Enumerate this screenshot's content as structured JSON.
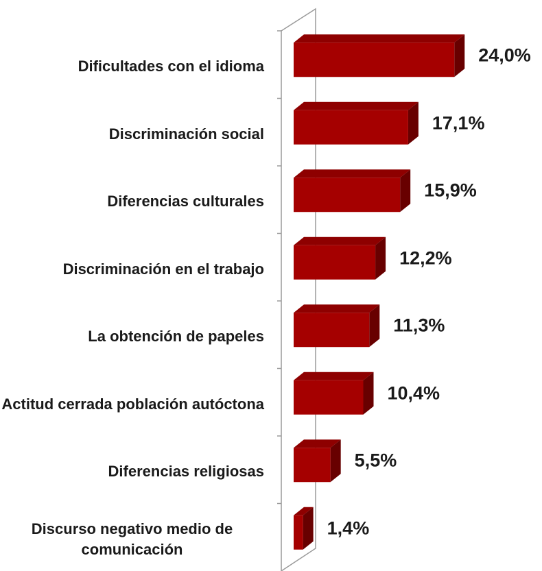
{
  "chart_data": {
    "type": "bar",
    "orientation": "horizontal",
    "categories": [
      "Dificultades con el idioma",
      "Discriminación social",
      "Diferencias culturales",
      "Discriminación en el trabajo",
      "La obtención de papeles",
      "Actitud cerrada población autóctona",
      "Diferencias religiosas",
      "Discurso negativo medio de comunicación"
    ],
    "values": [
      24.0,
      17.1,
      15.9,
      12.2,
      11.3,
      10.4,
      5.5,
      1.4
    ],
    "value_labels": [
      "24,0%",
      "17,1%",
      "15,9%",
      "12,2%",
      "11,3%",
      "10,4%",
      "5,5%",
      "1,4%"
    ],
    "color": "#a50000",
    "xlim": [
      0,
      25
    ]
  }
}
